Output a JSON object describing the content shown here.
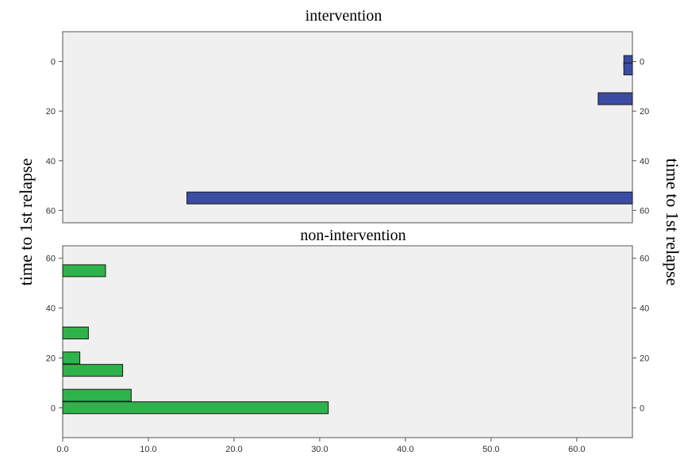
{
  "chart_data": {
    "type": "bar",
    "orientation": "horizontal",
    "grid": false,
    "ylabel_left": "time to 1st relapse",
    "ylabel_right": "time to 1st relapse",
    "shared_x": {
      "range": [
        0,
        66.5
      ],
      "ticks": [
        "0.0",
        "10.0",
        "20.0",
        "30.0",
        "40.0",
        "50.0",
        "60.0"
      ],
      "tick_values": [
        0,
        10,
        20,
        30,
        40,
        50,
        60
      ]
    },
    "panels": [
      {
        "title": "intervention",
        "y_range": [
          -12,
          65
        ],
        "y_ticks": [
          "0",
          "20",
          "40",
          "60"
        ],
        "y_tick_values": [
          0,
          20,
          40,
          60
        ],
        "y_inverted": true,
        "bars_grow_from": "right",
        "bar_color": "#3a4da3",
        "bars": [
          {
            "y": 0,
            "value": 1
          },
          {
            "y": 3,
            "value": 1
          },
          {
            "y": 15,
            "value": 4
          },
          {
            "y": 55,
            "value": 52
          }
        ]
      },
      {
        "title": "non-intervention",
        "y_range": [
          -12,
          65
        ],
        "y_ticks": [
          "0",
          "20",
          "40",
          "60"
        ],
        "y_tick_values": [
          0,
          20,
          40,
          60
        ],
        "y_inverted": false,
        "bars_grow_from": "left",
        "bar_color": "#2db34a",
        "bars": [
          {
            "y": 0,
            "value": 31
          },
          {
            "y": 5,
            "value": 8
          },
          {
            "y": 15,
            "value": 7
          },
          {
            "y": 20,
            "value": 2
          },
          {
            "y": 30,
            "value": 3
          },
          {
            "y": 55,
            "value": 5
          }
        ]
      }
    ]
  }
}
